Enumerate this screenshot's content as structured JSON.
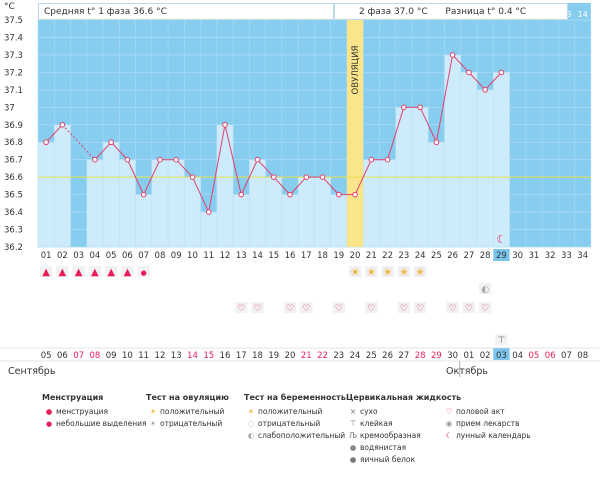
{
  "info": {
    "phase1": "Средняя t° 1 фаза 36.6 °C",
    "phase2": "2 фаза 37.0 °C",
    "diff": "Разница t° 0.4 °C"
  },
  "ovulation_label": "ОВУЛЯЦИЯ",
  "months": {
    "left": "Сентябрь",
    "right": "Октябрь"
  },
  "colors": {
    "background": "#87cdf0",
    "bar": "#cdebfb",
    "line": "#e0406a",
    "ovulation": "#fbe58a",
    "coverline": "#e8e050",
    "weekend": "#e8205a"
  },
  "chart_data": {
    "type": "line",
    "ylabel": "°C",
    "ylim": [
      36.2,
      37.5
    ],
    "yticks": [
      "36.2",
      "36.3",
      "36.4",
      "36.5",
      "36.6",
      "36.7",
      "36.8",
      "36.9",
      "37",
      "37.1",
      "37.2",
      "37.3",
      "37.4",
      "37.5"
    ],
    "coverline": 36.6,
    "ovulation_day": 20,
    "current_day": 29,
    "cycle_days": [
      "01",
      "02",
      "03",
      "04",
      "05",
      "06",
      "07",
      "08",
      "09",
      "10",
      "11",
      "12",
      "13",
      "14",
      "15",
      "16",
      "17",
      "18",
      "19",
      "20",
      "21",
      "22",
      "23",
      "24",
      "25",
      "26",
      "27",
      "28",
      "29",
      "30",
      "31",
      "32",
      "33",
      "34"
    ],
    "top_days": [
      "01",
      "02",
      "03",
      "04",
      "05",
      "06",
      "07",
      "08",
      "09",
      "10",
      "11",
      "12",
      "13",
      "14"
    ],
    "dates": [
      "05",
      "06",
      "07",
      "08",
      "09",
      "10",
      "11",
      "12",
      "13",
      "14",
      "15",
      "16",
      "17",
      "18",
      "19",
      "20",
      "21",
      "22",
      "23",
      "24",
      "25",
      "26",
      "27",
      "28",
      "29",
      "30",
      "01",
      "02",
      "03",
      "04",
      "05",
      "06",
      "07",
      "08"
    ],
    "weekend_dates": [
      3,
      4,
      10,
      11,
      17,
      18,
      24,
      25,
      31,
      32
    ],
    "temperatures": [
      36.8,
      36.9,
      null,
      36.7,
      36.8,
      36.7,
      36.5,
      36.7,
      36.7,
      36.6,
      36.4,
      36.9,
      36.5,
      36.7,
      36.6,
      36.5,
      36.6,
      36.6,
      36.5,
      36.5,
      36.7,
      36.7,
      37.0,
      37.0,
      36.8,
      37.3,
      37.2,
      37.1,
      37.2,
      null,
      null,
      null,
      null,
      null
    ],
    "menstruation_days": [
      1,
      2,
      3,
      4,
      5,
      6
    ],
    "small_discharge_days": [
      7
    ],
    "ovulation_test_positive_days": [
      20,
      21,
      22,
      23,
      24
    ],
    "intercourse_days": [
      13,
      14,
      16,
      17,
      19,
      21,
      23,
      24,
      26,
      27,
      28
    ],
    "pregnancy_test_faint_days": [
      28
    ],
    "sticky_mucus_days": [
      29
    ],
    "lunar_days": [
      29
    ]
  },
  "legend": {
    "menstruation": {
      "title": "Менструация",
      "items": [
        "менструация",
        "небольшие выделения"
      ]
    },
    "ovulation_test": {
      "title": "Тест на овуляцию",
      "items": [
        "положительный",
        "отрицательный"
      ]
    },
    "pregnancy_test": {
      "title": "Тест на беременность",
      "items": [
        "положительный",
        "отрицательный",
        "слабоположительный"
      ]
    },
    "cervical": {
      "title": "Цервикальная жидкость",
      "items": [
        "сухо",
        "клейкая",
        "кремообразная",
        "водянистая",
        "яичный белок"
      ]
    },
    "other": {
      "items": [
        "половой акт",
        "прием лекарств",
        "лунный календарь"
      ]
    }
  }
}
